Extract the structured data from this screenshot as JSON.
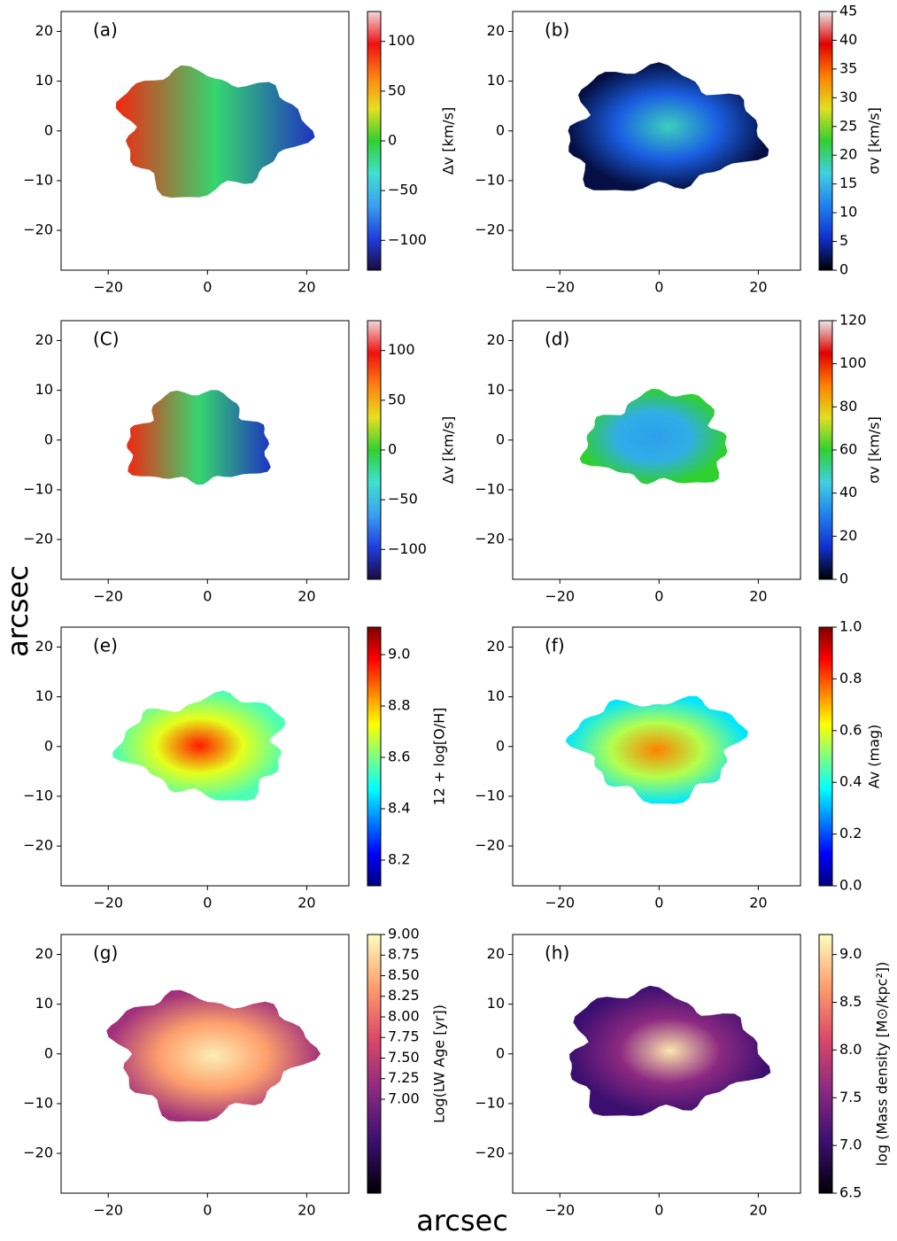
{
  "figure": {
    "xlabel": "arcsec",
    "ylabel": "arcsec"
  },
  "chart_data": [
    {
      "type": "image",
      "label": "(a)",
      "xlim": [
        -29.5,
        28.5
      ],
      "ylim": [
        -28,
        24
      ],
      "xticks": [
        {
          "value": -20,
          "label": "−20"
        },
        0,
        20
      ],
      "yticks": [
        {
          "value": -20,
          "label": "−20"
        },
        {
          "value": -10,
          "label": "−10"
        },
        0,
        10,
        20
      ],
      "colorbar": {
        "label": "Δv [km/s]",
        "lim": [
          -130,
          130
        ],
        "ticks": [
          {
            "value": -100,
            "label": "−100"
          },
          {
            "value": -50,
            "label": "−50"
          },
          0,
          50,
          100
        ],
        "colormap": [
          "#1a0a40",
          "#1f3fe0",
          "#3aa0f0",
          "#40e0d0",
          "#30d030",
          "#e8e020",
          "#ff8010",
          "#f01010",
          "#f0d8d8"
        ]
      }
    },
    {
      "type": "image",
      "label": "(b)",
      "xlim": [
        -29.5,
        28.5
      ],
      "ylim": [
        -28,
        24
      ],
      "xticks": [
        {
          "value": -20,
          "label": "−20"
        },
        0,
        20
      ],
      "yticks": [
        {
          "value": -20,
          "label": "−20"
        },
        {
          "value": -10,
          "label": "−10"
        },
        0,
        10,
        20
      ],
      "colorbar": {
        "label": "σv [km/s]",
        "lim": [
          0,
          45
        ],
        "ticks": [
          0,
          5,
          10,
          15,
          20,
          25,
          30,
          35,
          40,
          45
        ],
        "colormap": [
          "#000000",
          "#1030d0",
          "#2080f0",
          "#40d0e0",
          "#30d030",
          "#e0e020",
          "#ff8000",
          "#e00000",
          "#e8e8e8"
        ]
      }
    },
    {
      "type": "image",
      "label": "(C)",
      "xlim": [
        -29.5,
        28.5
      ],
      "ylim": [
        -28,
        24
      ],
      "xticks": [
        {
          "value": -20,
          "label": "−20"
        },
        0,
        20
      ],
      "yticks": [
        {
          "value": -20,
          "label": "−20"
        },
        {
          "value": -10,
          "label": "−10"
        },
        0,
        10,
        20
      ],
      "colorbar": {
        "label": "Δv [km/s]",
        "lim": [
          -130,
          130
        ],
        "ticks": [
          {
            "value": -100,
            "label": "−100"
          },
          {
            "value": -50,
            "label": "−50"
          },
          0,
          50,
          100
        ],
        "colormap": [
          "#1a0a40",
          "#1f3fe0",
          "#3aa0f0",
          "#40e0d0",
          "#30d030",
          "#e8e020",
          "#ff8010",
          "#f01010",
          "#f0d8d8"
        ]
      }
    },
    {
      "type": "image",
      "label": "(d)",
      "xlim": [
        -29.5,
        28.5
      ],
      "ylim": [
        -28,
        24
      ],
      "xticks": [
        {
          "value": -20,
          "label": "−20"
        },
        0,
        20
      ],
      "yticks": [
        {
          "value": -20,
          "label": "−20"
        },
        {
          "value": -10,
          "label": "−10"
        },
        0,
        10,
        20
      ],
      "colorbar": {
        "label": "σv [km/s]",
        "lim": [
          0,
          120
        ],
        "ticks": [
          0,
          20,
          40,
          60,
          80,
          100,
          120
        ],
        "colormap": [
          "#000000",
          "#1030d0",
          "#2080f0",
          "#40d0e0",
          "#30d030",
          "#e0e020",
          "#ff8000",
          "#e00000",
          "#e8e8e8"
        ]
      }
    },
    {
      "type": "image",
      "label": "(e)",
      "xlim": [
        -29.5,
        28.5
      ],
      "ylim": [
        -28,
        24
      ],
      "xticks": [
        {
          "value": -20,
          "label": "−20"
        },
        0,
        20
      ],
      "yticks": [
        {
          "value": -20,
          "label": "−20"
        },
        {
          "value": -10,
          "label": "−10"
        },
        0,
        10,
        20
      ],
      "colorbar": {
        "label": "12 + log[O/H]",
        "lim": [
          8.1,
          9.107
        ],
        "ticks": [
          8.2,
          8.4,
          8.6,
          8.8,
          {
            "value": 9,
            "label": "9.0"
          }
        ],
        "colormap": [
          "#000080",
          "#0000ff",
          "#0080ff",
          "#00ffff",
          "#80ff80",
          "#ffff00",
          "#ff8000",
          "#ff0000",
          "#800000"
        ]
      }
    },
    {
      "type": "image",
      "label": "(f)",
      "xlim": [
        -29.5,
        28.5
      ],
      "ylim": [
        -28,
        24
      ],
      "xticks": [
        {
          "value": -20,
          "label": "−20"
        },
        0,
        20
      ],
      "yticks": [
        {
          "value": -20,
          "label": "−20"
        },
        {
          "value": -10,
          "label": "−10"
        },
        0,
        10,
        20
      ],
      "colorbar": {
        "label": "Av (mag)",
        "lim": [
          0,
          1
        ],
        "ticks": [
          {
            "value": 0,
            "label": "0.0"
          },
          0.2,
          0.4,
          0.6,
          0.8,
          {
            "value": 1,
            "label": "1.0"
          }
        ],
        "colormap": [
          "#000080",
          "#0000ff",
          "#0080ff",
          "#00ffff",
          "#80ff80",
          "#ffff00",
          "#ff8000",
          "#ff0000",
          "#800000"
        ]
      }
    },
    {
      "type": "image",
      "label": "(g)",
      "xlim": [
        -29.5,
        28.5
      ],
      "ylim": [
        -28,
        24
      ],
      "xticks": [
        {
          "value": -20,
          "label": "−20"
        },
        0,
        20
      ],
      "yticks": [
        {
          "value": -20,
          "label": "−20"
        },
        {
          "value": -10,
          "label": "−10"
        },
        0,
        10,
        20
      ],
      "colorbar": {
        "label": "Log(LW Age [yr])",
        "lim": [
          5.86,
          9
        ],
        "ticks": [
          {
            "value": 7,
            "label": "7.00"
          },
          7.25,
          {
            "value": 7.5,
            "label": "7.50"
          },
          7.75,
          {
            "value": 8,
            "label": "8.00"
          },
          8.25,
          {
            "value": 8.5,
            "label": "8.50"
          },
          8.75,
          {
            "value": 9,
            "label": "9.00"
          }
        ],
        "colormap": [
          "#000004",
          "#3b0f70",
          "#8c2981",
          "#de4968",
          "#fe9f6d",
          "#fcfdbf"
        ]
      }
    },
    {
      "type": "image",
      "label": "(h)",
      "xlim": [
        -29.5,
        28.5
      ],
      "ylim": [
        -28,
        24
      ],
      "xticks": [
        {
          "value": -20,
          "label": "−20"
        },
        0,
        20
      ],
      "yticks": [
        {
          "value": -20,
          "label": "−20"
        },
        {
          "value": -10,
          "label": "−10"
        },
        0,
        10,
        20
      ],
      "colorbar": {
        "label": "log (Mass density [M⊙/kpc²])",
        "lim": [
          6.5,
          9.21
        ],
        "ticks": [
          6.5,
          {
            "value": 7,
            "label": "7.0"
          },
          7.5,
          {
            "value": 8,
            "label": "8.0"
          },
          8.5,
          {
            "value": 9,
            "label": "9.0"
          }
        ],
        "colormap": [
          "#000004",
          "#3b0f70",
          "#8c2981",
          "#de4968",
          "#fe9f6d",
          "#fcfdbf"
        ]
      }
    }
  ]
}
